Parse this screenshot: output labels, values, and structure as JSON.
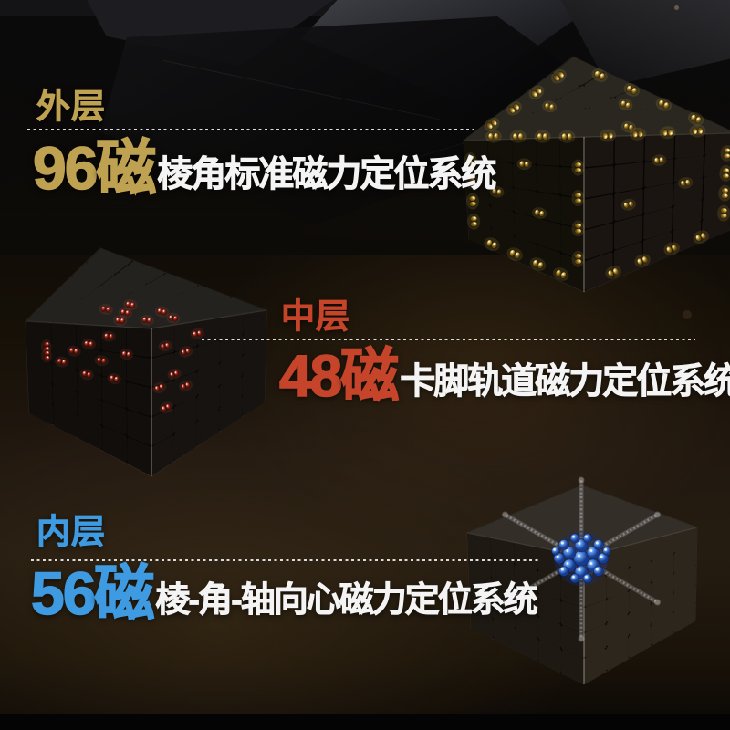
{
  "page": {
    "theme": "dark-product-poster",
    "text_color": "#f4f4f4",
    "background_top": "#0a0a0b",
    "background_warm": "#251c11"
  },
  "sections": [
    {
      "id": "outer",
      "title": "外层",
      "count": "96",
      "unit": "磁",
      "desc": "棱角标准磁力定位系统",
      "accent": "#bfa251",
      "magnet_color": "#d4ac3e",
      "cube_icon": "cube-outer-edge-magnets"
    },
    {
      "id": "middle",
      "title": "中层",
      "count": "48",
      "unit": "磁",
      "desc": "卡脚轨道磁力定位系统",
      "accent": "#c5442a",
      "magnet_color": "#cf4433",
      "cube_icon": "cube-middle-track-magnets"
    },
    {
      "id": "inner",
      "title": "内层",
      "count": "56",
      "unit": "磁",
      "desc": "棱-角-轴向心磁力定位系统",
      "accent": "#3e9be2",
      "magnet_color": "#4f8ae0",
      "cube_icon": "cube-inner-core-magnets"
    }
  ]
}
